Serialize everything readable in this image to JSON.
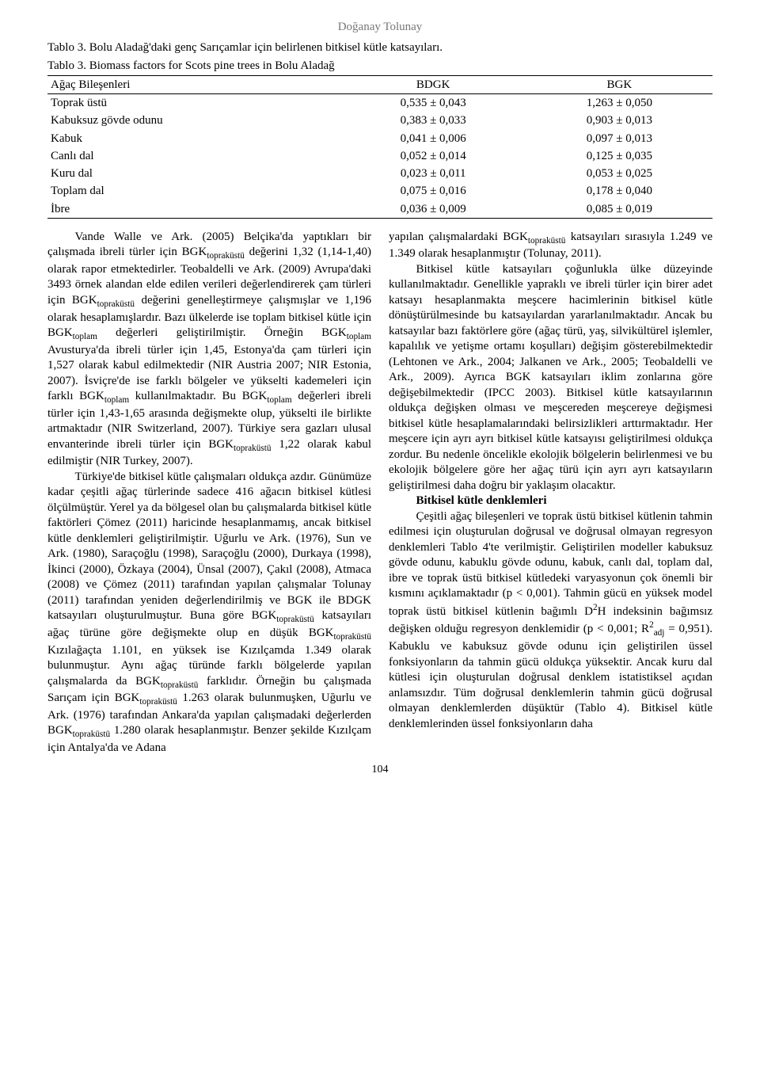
{
  "header_name": "Doğanay Tolunay",
  "table_caption_tr": "Tablo 3. Bolu Aladağ'daki genç Sarıçamlar için belirlenen bitkisel kütle katsayıları.",
  "table_caption_en": "Tablo 3. Biomass factors for Scots pine trees in Bolu Aladağ",
  "table": {
    "type": "table",
    "background_color": "#ffffff",
    "border_color": "#000000",
    "font_size_pt": 11,
    "columns": [
      "Ağaç Bileşenleri",
      "BDGK",
      "BGK"
    ],
    "col_widths": [
      "44%",
      "28%",
      "28%"
    ],
    "rows": [
      [
        "Toprak üstü",
        "0,535 ± 0,043",
        "1,263 ± 0,050"
      ],
      [
        "Kabuksuz gövde odunu",
        "0,383 ± 0,033",
        "0,903 ± 0,013"
      ],
      [
        "Kabuk",
        "0,041 ± 0,006",
        "0,097 ± 0,013"
      ],
      [
        "Canlı dal",
        "0,052 ± 0,014",
        "0,125 ± 0,035"
      ],
      [
        "Kuru dal",
        "0,023 ± 0,011",
        "0,053 ± 0,025"
      ],
      [
        "Toplam dal",
        "0,075 ± 0,016",
        "0,178 ± 0,040"
      ],
      [
        "İbre",
        "0,036 ± 0,009",
        "0,085 ± 0,019"
      ]
    ]
  },
  "body": {
    "p1": "Vande Walle ve Ark. (2005) Belçika'da yaptıkları bir çalışmada ibreli türler için BGKtopraküstü değerini 1,32 (1,14-1,40) olarak rapor etmektedirler. Teobaldelli ve Ark. (2009) Avrupa'daki 3493 örnek alandan elde edilen verileri değerlendirerek çam türleri için BGKtopraküstü değerini genelleştirmeye çalışmışlar ve 1,196 olarak hesaplamışlardır. Bazı ülkelerde ise toplam bitkisel kütle için BGKtoplam değerleri geliştirilmiştir. Örneğin BGKtoplam Avusturya'da ibreli türler için 1,45, Estonya'da çam türleri için 1,527 olarak kabul edilmektedir (NIR Austria 2007; NIR Estonia, 2007). İsviçre'de ise farklı bölgeler ve yükselti kademeleri için farklı BGKtoplam kullanılmaktadır. Bu BGKtoplam değerleri ibreli türler için 1,43-1,65 arasında değişmekte olup, yükselti ile birlikte artmaktadır (NIR Switzerland, 2007). Türkiye sera gazları ulusal envanterinde ibreli türler için BGKtopraküstü 1,22 olarak kabul edilmiştir (NIR Turkey, 2007).",
    "p2": "Türkiye'de bitkisel kütle çalışmaları oldukça azdır. Günümüze kadar çeşitli ağaç türlerinde sadece 416 ağacın bitkisel kütlesi ölçülmüştür. Yerel ya da bölgesel olan bu çalışmalarda bitkisel kütle faktörleri Çömez (2011) haricinde hesaplanmamış, ancak bitkisel kütle denklemleri geliştirilmiştir. Uğurlu ve Ark. (1976), Sun ve Ark. (1980), Saraçoğlu (1998), Saraçoğlu (2000), Durkaya (1998), İkinci (2000), Özkaya (2004), Ünsal (2007), Çakıl (2008), Atmaca (2008) ve Çömez (2011) tarafından yapılan çalışmalar Tolunay (2011) tarafından yeniden değerlendirilmiş ve BGK ile BDGK katsayıları oluşturulmuştur. Buna göre BGKtopraküstü katsayıları ağaç türüne göre değişmekte olup en düşük BGKtopraküstü Kızılağaçta 1.101, en yüksek ise Kızılçamda 1.349 olarak bulunmuştur. Aynı ağaç türünde farklı bölgelerde yapılan çalışmalarda da BGKtopraküstü farklıdır. Örneğin bu çalışmada Sarıçam için BGKtopraküstü 1.263 olarak bulunmuşken, Uğurlu ve Ark. (1976) tarafından Ankara'da yapılan çalışmadaki değerlerden BGKtopraküstü 1.280 olarak hesaplanmıştır. Benzer şekilde Kızılçam için Antalya'da ve Adana",
    "p3": "yapılan çalışmalardaki BGKtopraküstü katsayıları sırasıyla 1.249 ve 1.349 olarak hesaplanmıştır (Tolunay, 2011).",
    "p4": "Bitkisel kütle katsayıları çoğunlukla ülke düzeyinde kullanılmaktadır. Genellikle yapraklı ve ibreli türler için birer adet katsayı hesaplanmakta meşcere hacimlerinin bitkisel kütle dönüştürülmesinde bu katsayılardan yararlanılmaktadır. Ancak bu katsayılar bazı faktörlere göre (ağaç türü, yaş, silvikültürel işlemler, kapalılık ve yetişme ortamı koşulları) değişim gösterebilmektedir (Lehtonen ve Ark., 2004; Jalkanen ve Ark., 2005; Teobaldelli ve Ark., 2009). Ayrıca BGK katsayıları iklim zonlarına göre değişebilmektedir (IPCC 2003). Bitkisel kütle katsayılarının oldukça değişken olması ve meşcereden meşcereye değişmesi bitkisel kütle hesaplamalarındaki belirsizlikleri arttırmaktadır. Her meşcere için ayrı ayrı bitkisel kütle katsayısı geliştirilmesi oldukça zordur. Bu nedenle öncelikle ekolojik bölgelerin belirlenmesi ve bu ekolojik bölgelere göre her ağaç türü için ayrı ayrı katsayıların geliştirilmesi daha doğru bir yaklaşım olacaktır.",
    "heading": "Bitkisel kütle denklemleri",
    "p5": "Çeşitli ağaç bileşenleri ve toprak üstü bitkisel kütlenin tahmin edilmesi için oluşturulan doğrusal ve doğrusal olmayan regresyon denklemleri Tablo 4'te verilmiştir. Geliştirilen modeller kabuksuz gövde odunu, kabuklu gövde odunu, kabuk, canlı dal, toplam dal, ibre ve toprak üstü bitkisel kütledeki varyasyonun çok önemli bir kısmını açıklamaktadır (p < 0,001). Tahmin gücü en yüksek model toprak üstü bitkisel kütlenin bağımlı D2H indeksinin bağımsız değişken olduğu regresyon denklemidir (p < 0,001; R2adj = 0,951). Kabuklu ve kabuksuz gövde odunu için geliştirilen üssel fonksiyonların da tahmin gücü oldukça yüksektir. Ancak kuru dal kütlesi için oluşturulan doğrusal denklem istatistiksel açıdan anlamsızdır. Tüm doğrusal denklemlerin tahmin gücü doğrusal olmayan denklemlerden düşüktür (Tablo 4). Bitkisel kütle denklemlerinden üssel fonksiyonların daha"
  },
  "page_number": "104"
}
